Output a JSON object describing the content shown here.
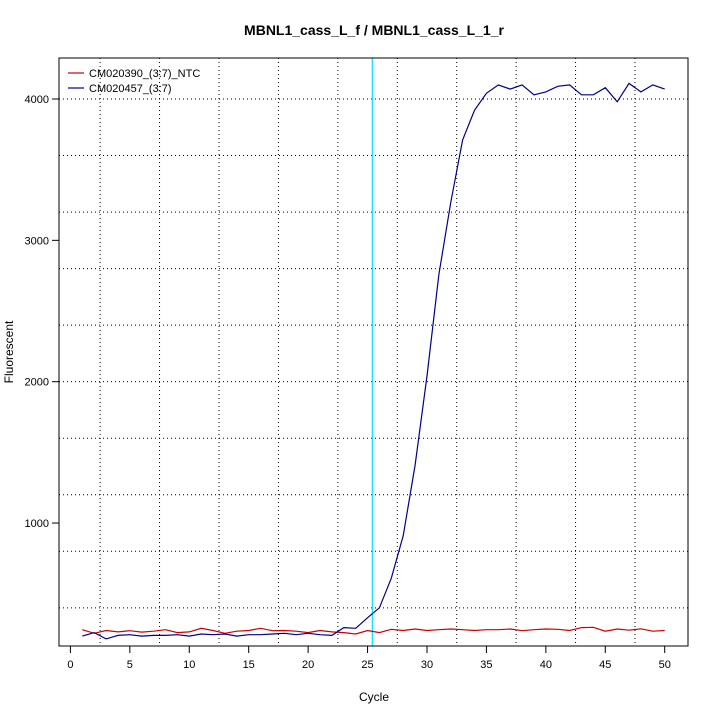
{
  "chart_data": {
    "type": "line",
    "title": "MBNL1_cass_L_f / MBNL1_cass_L_1_r",
    "xlabel": "Cycle",
    "ylabel": "Fluorescent",
    "xlim": [
      1,
      50
    ],
    "ylim": [
      130,
      4290
    ],
    "x_ticks": [
      0,
      5,
      10,
      15,
      20,
      25,
      30,
      35,
      40,
      45,
      50
    ],
    "y_ticks": [
      1000,
      2000,
      3000,
      4000
    ],
    "grid": true,
    "legend_position": "top-left",
    "threshold_cycle": 25.4,
    "threshold_color": "#00e5ee",
    "x": [
      1,
      2,
      3,
      4,
      5,
      6,
      7,
      8,
      9,
      10,
      11,
      12,
      13,
      14,
      15,
      16,
      17,
      18,
      19,
      20,
      21,
      22,
      23,
      24,
      25,
      26,
      27,
      28,
      29,
      30,
      31,
      32,
      33,
      34,
      35,
      36,
      37,
      38,
      39,
      40,
      41,
      42,
      43,
      44,
      45,
      46,
      47,
      48,
      49,
      50
    ],
    "series": [
      {
        "name": "CM020390_(3:7)_NTC",
        "color": "#cc0000",
        "values": [
          245,
          220,
          240,
          230,
          238,
          228,
          235,
          245,
          225,
          230,
          255,
          240,
          220,
          235,
          240,
          255,
          238,
          240,
          235,
          225,
          240,
          230,
          225,
          215,
          240,
          225,
          248,
          240,
          250,
          240,
          245,
          250,
          245,
          240,
          245,
          245,
          250,
          238,
          245,
          250,
          248,
          240,
          260,
          262,
          235,
          250,
          242,
          252,
          235,
          240
        ]
      },
      {
        "name": "CM020457_(3:7)",
        "color": "#00008b",
        "values": [
          200,
          225,
          180,
          205,
          210,
          200,
          205,
          205,
          210,
          200,
          215,
          210,
          215,
          200,
          210,
          210,
          215,
          220,
          210,
          220,
          210,
          205,
          260,
          255,
          330,
          400,
          610,
          910,
          1410,
          2040,
          2760,
          3270,
          3710,
          3920,
          4040,
          4100,
          4070,
          4100,
          4030,
          4050,
          4090,
          4100,
          4030,
          4030,
          4080,
          3980,
          4110,
          4050,
          4100,
          4070
        ]
      }
    ]
  }
}
